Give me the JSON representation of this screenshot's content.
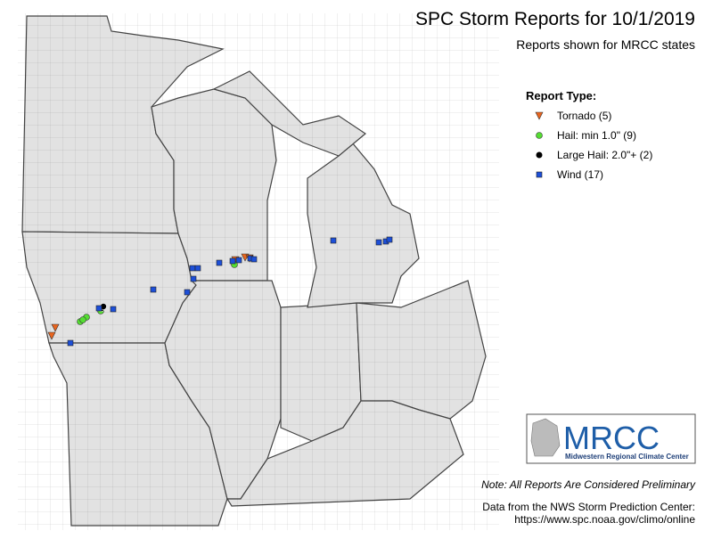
{
  "header": {
    "title": "SPC Storm Reports for 10/1/2019",
    "subtitle": "Reports shown for MRCC states"
  },
  "legend": {
    "title": "Report Type:",
    "items": [
      "Tornado (5)",
      "Hail: min 1.0\" (9)",
      "Large Hail: 2.0\"+ (2)",
      "Wind (17)"
    ]
  },
  "logo": {
    "name": "MRCC",
    "full_name": "Midwestern Regional Climate Center"
  },
  "note": "Note: All Reports Are Considered Preliminary",
  "source": {
    "line1": "Data from the NWS Storm Prediction Center:",
    "line2": "https://www.spc.noaa.gov/climo/online"
  }
}
